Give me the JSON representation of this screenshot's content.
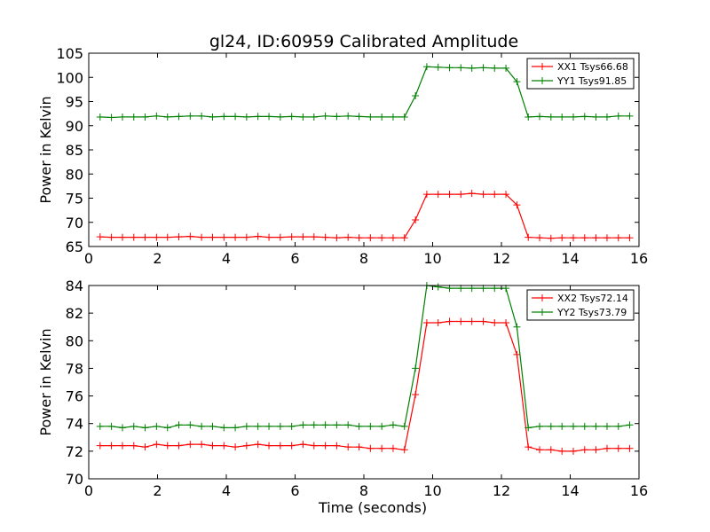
{
  "figure": {
    "title": "gl24, ID:60959 Calibrated Amplitude"
  },
  "chart_data": [
    {
      "type": "line",
      "title": "gl24, ID:60959 Calibrated Amplitude",
      "xlabel": "",
      "ylabel": "Power in Kelvin",
      "xlim": [
        0,
        16
      ],
      "ylim": [
        65,
        105
      ],
      "xticks": [
        0,
        2,
        4,
        6,
        8,
        10,
        12,
        14,
        16
      ],
      "yticks": [
        65,
        70,
        75,
        80,
        85,
        90,
        95,
        100,
        105
      ],
      "marker": "+",
      "legend_position": "top-right",
      "x": [
        0.33,
        0.66,
        0.98,
        1.31,
        1.64,
        1.97,
        2.29,
        2.62,
        2.95,
        3.28,
        3.6,
        3.93,
        4.26,
        4.59,
        4.92,
        5.24,
        5.57,
        5.9,
        6.23,
        6.55,
        6.88,
        7.21,
        7.54,
        7.86,
        8.19,
        8.52,
        8.85,
        9.18,
        9.5,
        9.83,
        10.16,
        10.49,
        10.82,
        11.14,
        11.47,
        11.8,
        12.13,
        12.45,
        12.78,
        13.11,
        13.44,
        13.76,
        14.09,
        14.42,
        14.75,
        15.07,
        15.4,
        15.73
      ],
      "series": [
        {
          "name": "XX1 Tsys66.68",
          "color": "#ff0000",
          "values": [
            67.0,
            66.9,
            66.9,
            66.9,
            66.9,
            66.9,
            66.9,
            67.0,
            67.1,
            66.9,
            66.9,
            66.9,
            66.9,
            66.9,
            67.1,
            66.9,
            66.9,
            67.0,
            67.0,
            67.0,
            66.9,
            66.8,
            66.9,
            66.8,
            66.8,
            66.8,
            66.8,
            66.8,
            70.5,
            75.8,
            75.8,
            75.8,
            75.8,
            76.0,
            75.8,
            75.8,
            75.8,
            73.6,
            66.9,
            66.8,
            66.7,
            66.8,
            66.8,
            66.8,
            66.8,
            66.8,
            66.8,
            66.8
          ]
        },
        {
          "name": "YY1 Tsys91.85",
          "color": "#008000",
          "values": [
            91.8,
            91.7,
            91.8,
            91.8,
            91.8,
            92.0,
            91.8,
            91.9,
            92.0,
            92.0,
            91.8,
            91.9,
            91.9,
            91.8,
            91.9,
            91.9,
            91.8,
            91.9,
            91.8,
            91.8,
            92.0,
            91.9,
            92.0,
            91.9,
            91.8,
            91.8,
            91.8,
            91.8,
            96.2,
            102.2,
            102.1,
            102.0,
            102.0,
            101.9,
            102.0,
            101.9,
            101.9,
            99.1,
            91.8,
            91.9,
            91.8,
            91.8,
            91.8,
            91.9,
            91.8,
            91.8,
            92.0,
            92.0
          ]
        }
      ]
    },
    {
      "type": "line",
      "title": "",
      "xlabel": "Time (seconds)",
      "ylabel": "Power in Kelvin",
      "xlim": [
        0,
        16
      ],
      "ylim": [
        70,
        84
      ],
      "xticks": [
        0,
        2,
        4,
        6,
        8,
        10,
        12,
        14,
        16
      ],
      "yticks": [
        70,
        72,
        74,
        76,
        78,
        80,
        82,
        84
      ],
      "marker": "+",
      "legend_position": "top-right",
      "x": [
        0.33,
        0.66,
        0.98,
        1.31,
        1.64,
        1.97,
        2.29,
        2.62,
        2.95,
        3.28,
        3.6,
        3.93,
        4.26,
        4.59,
        4.92,
        5.24,
        5.57,
        5.9,
        6.23,
        6.55,
        6.88,
        7.21,
        7.54,
        7.86,
        8.19,
        8.52,
        8.85,
        9.18,
        9.5,
        9.83,
        10.16,
        10.49,
        10.82,
        11.14,
        11.47,
        11.8,
        12.13,
        12.45,
        12.78,
        13.11,
        13.44,
        13.76,
        14.09,
        14.42,
        14.75,
        15.07,
        15.4,
        15.73
      ],
      "series": [
        {
          "name": "XX2 Tsys72.14",
          "color": "#ff0000",
          "values": [
            72.4,
            72.4,
            72.4,
            72.4,
            72.3,
            72.5,
            72.4,
            72.4,
            72.5,
            72.5,
            72.4,
            72.4,
            72.3,
            72.4,
            72.5,
            72.4,
            72.4,
            72.4,
            72.5,
            72.4,
            72.4,
            72.4,
            72.3,
            72.3,
            72.2,
            72.2,
            72.2,
            72.1,
            76.1,
            81.3,
            81.3,
            81.4,
            81.4,
            81.4,
            81.4,
            81.3,
            81.3,
            79.0,
            72.3,
            72.1,
            72.1,
            72.0,
            72.0,
            72.1,
            72.1,
            72.2,
            72.2,
            72.2
          ]
        },
        {
          "name": "YY2 Tsys73.79",
          "color": "#008000",
          "values": [
            73.8,
            73.8,
            73.7,
            73.8,
            73.7,
            73.8,
            73.7,
            73.9,
            73.9,
            73.8,
            73.8,
            73.7,
            73.7,
            73.8,
            73.8,
            73.8,
            73.8,
            73.8,
            73.9,
            73.9,
            73.9,
            73.9,
            73.9,
            73.8,
            73.8,
            73.8,
            73.9,
            73.8,
            78.0,
            84.0,
            83.9,
            83.8,
            83.8,
            83.8,
            83.8,
            83.8,
            83.8,
            81.0,
            73.7,
            73.8,
            73.8,
            73.8,
            73.8,
            73.8,
            73.8,
            73.8,
            73.8,
            73.9
          ]
        }
      ]
    }
  ]
}
